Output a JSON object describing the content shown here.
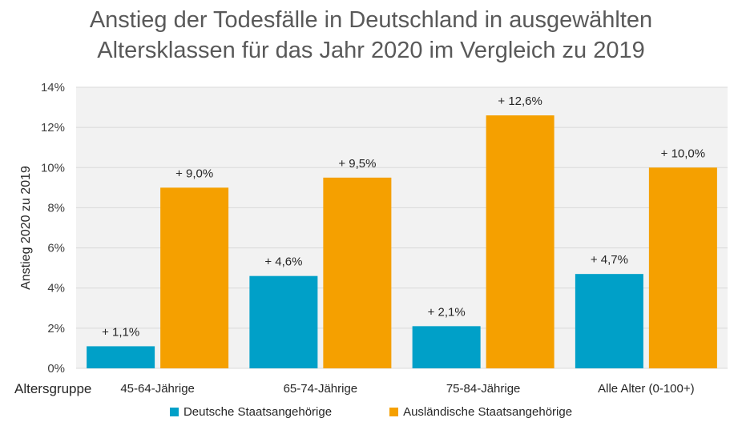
{
  "title_lines": [
    "Anstieg der Todesfälle in Deutschland in ausgewählten",
    "Altersklassen für das Jahr 2020 im Vergleich zu 2019"
  ],
  "colors": {
    "plot_background": "#f2f2f2",
    "gridline": "#d9d9d9"
  },
  "chart_data": {
    "type": "bar",
    "title": "Anstieg der Todesfälle in Deutschland in ausgewählten Altersklassen für das Jahr 2020 im Vergleich zu 2019",
    "xlabel": "Altersgruppe",
    "ylabel": "Anstieg 2020 zu 2019",
    "categories": [
      "45-64-Jährige",
      "65-74-Jährige",
      "75-84-Jährige",
      "Alle Alter (0-100+)"
    ],
    "series": [
      {
        "name": "Deutsche Staatsangehörige",
        "color": "#00a0c8",
        "values": [
          1.1,
          4.6,
          2.1,
          4.7
        ],
        "labels": [
          "+ 1,1%",
          "+ 4,6%",
          "+ 2,1%",
          "+ 4,7%"
        ]
      },
      {
        "name": "Ausländische Staatsangehörige",
        "color": "#f5a000",
        "values": [
          9.0,
          9.5,
          12.6,
          10.0
        ],
        "labels": [
          "+ 9,0%",
          "+ 9,5%",
          "+ 12,6%",
          "+ 10,0%"
        ]
      }
    ],
    "ylim": [
      0,
      14
    ],
    "yticks": [
      0,
      2,
      4,
      6,
      8,
      10,
      12,
      14
    ],
    "ytick_labels": [
      "0%",
      "2%",
      "4%",
      "6%",
      "8%",
      "10%",
      "12%",
      "14%"
    ],
    "grid": true,
    "legend_position": "bottom"
  }
}
